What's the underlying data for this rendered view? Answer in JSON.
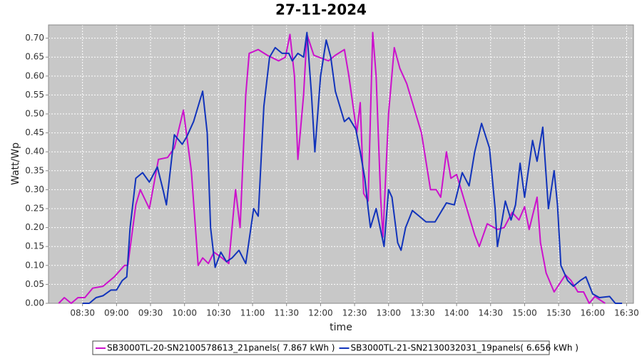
{
  "chart_data": {
    "type": "line",
    "title": "27-11-2024",
    "x_label": "time",
    "y_label": "Watt/Wp",
    "xlim": [
      480,
      996
    ],
    "ylim": [
      0,
      0.735
    ],
    "grid": true,
    "legend_position": "bottom",
    "xticks": [
      {
        "value": 510,
        "label": "08:30"
      },
      {
        "value": 540,
        "label": "09:00"
      },
      {
        "value": 570,
        "label": "09:30"
      },
      {
        "value": 600,
        "label": "10:00"
      },
      {
        "value": 630,
        "label": "10:30"
      },
      {
        "value": 660,
        "label": "11:00"
      },
      {
        "value": 690,
        "label": "11:30"
      },
      {
        "value": 720,
        "label": "12:00"
      },
      {
        "value": 750,
        "label": "12:30"
      },
      {
        "value": 780,
        "label": "13:00"
      },
      {
        "value": 810,
        "label": "13:30"
      },
      {
        "value": 840,
        "label": "14:00"
      },
      {
        "value": 870,
        "label": "14:30"
      },
      {
        "value": 900,
        "label": "15:00"
      },
      {
        "value": 930,
        "label": "15:30"
      },
      {
        "value": 960,
        "label": "16:00"
      },
      {
        "value": 990,
        "label": "16:30"
      }
    ],
    "yticks": [
      {
        "value": 0,
        "label": "0.00"
      },
      {
        "value": 0.05,
        "label": "0.05"
      },
      {
        "value": 0.1,
        "label": "0.10"
      },
      {
        "value": 0.15,
        "label": "0.15"
      },
      {
        "value": 0.2,
        "label": "0.20"
      },
      {
        "value": 0.25,
        "label": "0.25"
      },
      {
        "value": 0.3,
        "label": "0.30"
      },
      {
        "value": 0.35,
        "label": "0.35"
      },
      {
        "value": 0.4,
        "label": "0.40"
      },
      {
        "value": 0.45,
        "label": "0.45"
      },
      {
        "value": 0.5,
        "label": "0.50"
      },
      {
        "value": 0.55,
        "label": "0.55"
      },
      {
        "value": 0.6,
        "label": "0.60"
      },
      {
        "value": 0.65,
        "label": "0.65"
      },
      {
        "value": 0.7,
        "label": "0.70"
      }
    ],
    "series": [
      {
        "name": "SB3000TL-20-SN2100578613_21panels( 7.867 kWh )",
        "color": "#cc11cc",
        "x": [
          489,
          494,
          500,
          506,
          512,
          519,
          528,
          538,
          547,
          550,
          557,
          561,
          569,
          577,
          585,
          591,
          599,
          606,
          612,
          616,
          621,
          626,
          633,
          639,
          645,
          649,
          654,
          657,
          665,
          673,
          683,
          689,
          693,
          697,
          700,
          705,
          708,
          714,
          727,
          733,
          741,
          745,
          752,
          755,
          758,
          762,
          766,
          769,
          773,
          775,
          780,
          785,
          790,
          796,
          802,
          809,
          817,
          822,
          826,
          831,
          835,
          840,
          848,
          856,
          860,
          867,
          876,
          882,
          889,
          895,
          900,
          904,
          911,
          914,
          919,
          926,
          936,
          941,
          947,
          952,
          957,
          962,
          971
        ],
        "values": [
          0,
          0.015,
          0,
          0.015,
          0.015,
          0.04,
          0.045,
          0.07,
          0.1,
          0.1,
          0.26,
          0.3,
          0.25,
          0.38,
          0.385,
          0.41,
          0.51,
          0.35,
          0.1,
          0.12,
          0.105,
          0.135,
          0.12,
          0.105,
          0.3,
          0.2,
          0.55,
          0.66,
          0.67,
          0.655,
          0.64,
          0.65,
          0.71,
          0.6,
          0.38,
          0.55,
          0.71,
          0.655,
          0.64,
          0.655,
          0.67,
          0.6,
          0.45,
          0.53,
          0.29,
          0.27,
          0.715,
          0.6,
          0.28,
          0.175,
          0.5,
          0.675,
          0.62,
          0.58,
          0.52,
          0.45,
          0.3,
          0.3,
          0.28,
          0.4,
          0.33,
          0.34,
          0.26,
          0.18,
          0.15,
          0.21,
          0.195,
          0.2,
          0.24,
          0.22,
          0.255,
          0.195,
          0.28,
          0.16,
          0.08,
          0.03,
          0.075,
          0.06,
          0.03,
          0.03,
          0,
          0.018,
          0
        ]
      },
      {
        "name": "SB3000TL-21-SN2130032031_19panels( 6.656 kWh )",
        "color": "#1133bb",
        "x": [
          510,
          516,
          522,
          528,
          535,
          540,
          545,
          549,
          552,
          557,
          563,
          569,
          576,
          581,
          584,
          591,
          598,
          602,
          608,
          616,
          620,
          623,
          627,
          632,
          637,
          642,
          648,
          654,
          661,
          665,
          670,
          675,
          680,
          686,
          692,
          695,
          700,
          705,
          708,
          712,
          715,
          720,
          725,
          729,
          733,
          741,
          745,
          751,
          755,
          759,
          762,
          764,
          769,
          776,
          780,
          783,
          788,
          791,
          795,
          801,
          807,
          813,
          821,
          831,
          838,
          845,
          851,
          856,
          862,
          869,
          874,
          876,
          879,
          883,
          888,
          892,
          896,
          900,
          907,
          911,
          916,
          921,
          926,
          929,
          932,
          938,
          943,
          949,
          954,
          960,
          966,
          975,
          980,
          986
        ],
        "values": [
          0,
          0,
          0.015,
          0.02,
          0.035,
          0.035,
          0.06,
          0.07,
          0.2,
          0.33,
          0.345,
          0.32,
          0.36,
          0.3,
          0.26,
          0.445,
          0.42,
          0.44,
          0.48,
          0.56,
          0.45,
          0.2,
          0.095,
          0.135,
          0.11,
          0.12,
          0.14,
          0.105,
          0.25,
          0.23,
          0.52,
          0.65,
          0.675,
          0.66,
          0.66,
          0.64,
          0.66,
          0.65,
          0.715,
          0.55,
          0.4,
          0.6,
          0.695,
          0.65,
          0.56,
          0.48,
          0.49,
          0.46,
          0.4,
          0.33,
          0.25,
          0.2,
          0.25,
          0.15,
          0.3,
          0.28,
          0.16,
          0.14,
          0.2,
          0.245,
          0.23,
          0.215,
          0.215,
          0.265,
          0.26,
          0.345,
          0.31,
          0.4,
          0.475,
          0.41,
          0.25,
          0.15,
          0.2,
          0.27,
          0.22,
          0.26,
          0.37,
          0.28,
          0.43,
          0.375,
          0.465,
          0.25,
          0.35,
          0.26,
          0.1,
          0.06,
          0.045,
          0.06,
          0.07,
          0.025,
          0.015,
          0.018,
          0,
          0
        ]
      }
    ]
  }
}
